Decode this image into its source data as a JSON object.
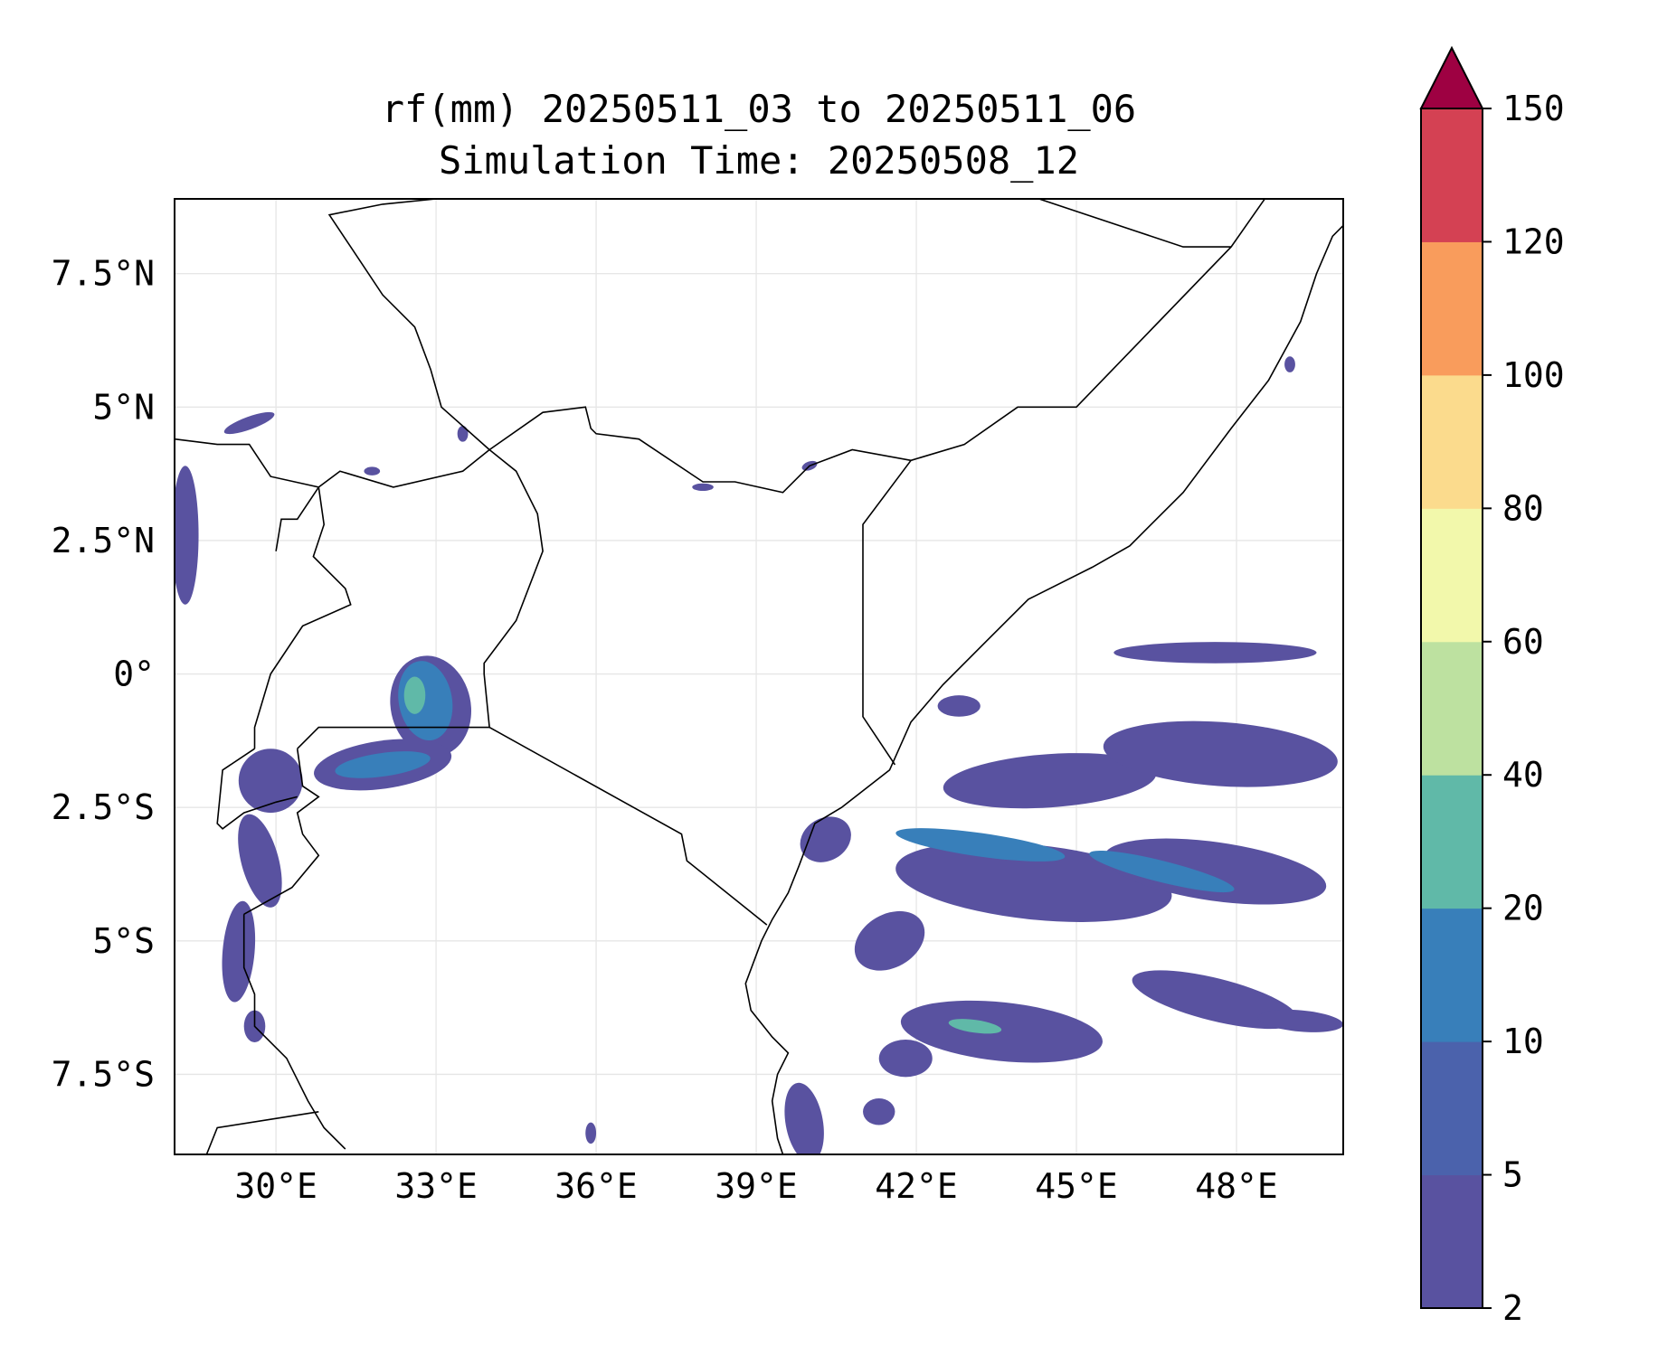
{
  "title": {
    "line1": "rf(mm) 20250511_03 to 20250511_06",
    "line2": "Simulation Time: 20250508_12"
  },
  "map": {
    "lon_range": [
      28.1,
      50.0
    ],
    "lat_range": [
      -9.0,
      8.9
    ],
    "x_ticks": [
      {
        "value": 30,
        "label": "30°E"
      },
      {
        "value": 33,
        "label": "33°E"
      },
      {
        "value": 36,
        "label": "36°E"
      },
      {
        "value": 39,
        "label": "39°E"
      },
      {
        "value": 42,
        "label": "42°E"
      },
      {
        "value": 45,
        "label": "45°E"
      },
      {
        "value": 48,
        "label": "48°E"
      }
    ],
    "y_ticks": [
      {
        "value": 7.5,
        "label": "7.5°N"
      },
      {
        "value": 5,
        "label": "5°N"
      },
      {
        "value": 2.5,
        "label": "2.5°N"
      },
      {
        "value": 0,
        "label": "0°"
      },
      {
        "value": -2.5,
        "label": "2.5°S"
      },
      {
        "value": -5,
        "label": "5°S"
      },
      {
        "value": -7.5,
        "label": "7.5°S"
      }
    ],
    "gridlines": true,
    "borders": [
      [
        [
          34.0,
          -1.0
        ],
        [
          37.6,
          -3.0
        ],
        [
          37.7,
          -3.5
        ],
        [
          39.2,
          -4.7
        ]
      ],
      [
        [
          34.0,
          -1.0
        ],
        [
          31.6,
          -1.0
        ],
        [
          30.8,
          -1.0
        ],
        [
          30.4,
          -1.4
        ]
      ],
      [
        [
          34.0,
          -1.0
        ],
        [
          33.9,
          0.0
        ],
        [
          33.9,
          0.2
        ],
        [
          34.5,
          1.0
        ],
        [
          35.0,
          2.3
        ],
        [
          34.9,
          3.0
        ],
        [
          34.5,
          3.8
        ],
        [
          34.0,
          4.2
        ]
      ],
      [
        [
          34.0,
          4.2
        ],
        [
          35.0,
          4.9
        ],
        [
          35.8,
          5.0
        ],
        [
          35.9,
          4.6
        ],
        [
          36.0,
          4.5
        ],
        [
          36.8,
          4.4
        ],
        [
          38.0,
          3.6
        ],
        [
          38.6,
          3.6
        ],
        [
          39.5,
          3.4
        ],
        [
          40.0,
          3.9
        ],
        [
          40.8,
          4.2
        ],
        [
          41.9,
          4.0
        ]
      ],
      [
        [
          41.9,
          4.0
        ],
        [
          41.0,
          2.8
        ],
        [
          41.0,
          -0.8
        ],
        [
          41.6,
          -1.7
        ]
      ],
      [
        [
          41.9,
          4.0
        ],
        [
          42.9,
          4.3
        ],
        [
          43.9,
          5.0
        ],
        [
          45.0,
          5.0
        ],
        [
          47.9,
          8.0
        ],
        [
          48.6,
          9.0
        ]
      ],
      [
        [
          47.9,
          8.0
        ],
        [
          47.0,
          8.0
        ],
        [
          44.0,
          9.0
        ]
      ],
      [
        [
          34.0,
          4.2
        ],
        [
          33.5,
          3.8
        ],
        [
          32.2,
          3.5
        ],
        [
          31.2,
          3.8
        ],
        [
          30.8,
          3.5
        ],
        [
          29.9,
          3.7
        ],
        [
          29.5,
          4.3
        ],
        [
          28.9,
          4.3
        ],
        [
          28.1,
          4.4
        ]
      ],
      [
        [
          30.8,
          3.5
        ],
        [
          30.9,
          2.8
        ],
        [
          30.7,
          2.2
        ],
        [
          31.3,
          1.6
        ],
        [
          31.4,
          1.3
        ],
        [
          30.5,
          0.9
        ],
        [
          29.9,
          0.0
        ],
        [
          29.6,
          -1.0
        ],
        [
          29.6,
          -1.4
        ]
      ],
      [
        [
          30.8,
          3.5
        ],
        [
          30.4,
          2.9
        ],
        [
          30.1,
          2.9
        ],
        [
          30.0,
          2.3
        ]
      ],
      [
        [
          34.0,
          4.2
        ],
        [
          33.1,
          5.0
        ],
        [
          32.9,
          5.7
        ],
        [
          32.6,
          6.5
        ],
        [
          32.0,
          7.1
        ],
        [
          31.4,
          8.0
        ],
        [
          31.0,
          8.6
        ],
        [
          32.0,
          8.8
        ],
        [
          33.0,
          8.9
        ]
      ],
      [
        [
          30.4,
          -1.4
        ],
        [
          30.5,
          -2.1
        ],
        [
          30.8,
          -2.3
        ],
        [
          30.4,
          -2.6
        ],
        [
          30.5,
          -3.0
        ],
        [
          30.8,
          -3.4
        ],
        [
          30.3,
          -4.0
        ],
        [
          29.4,
          -4.5
        ]
      ],
      [
        [
          29.6,
          -1.4
        ],
        [
          29.0,
          -1.8
        ],
        [
          28.9,
          -2.8
        ],
        [
          29.0,
          -2.9
        ],
        [
          29.4,
          -2.6
        ],
        [
          30.0,
          -2.4
        ],
        [
          30.4,
          -2.3
        ]
      ],
      [
        [
          29.4,
          -4.5
        ],
        [
          29.4,
          -5.5
        ],
        [
          29.6,
          -6.0
        ],
        [
          29.6,
          -6.6
        ],
        [
          30.2,
          -7.2
        ],
        [
          30.6,
          -8.0
        ],
        [
          30.9,
          -8.5
        ],
        [
          31.3,
          -8.9
        ]
      ],
      [
        [
          30.8,
          -8.2
        ],
        [
          28.9,
          -8.5
        ],
        [
          28.7,
          -9.0
        ]
      ]
    ],
    "coastline": [
      [
        39.5,
        -9.0
      ],
      [
        39.4,
        -8.7
      ],
      [
        39.3,
        -8.0
      ],
      [
        39.4,
        -7.5
      ],
      [
        39.6,
        -7.1
      ],
      [
        39.3,
        -6.8
      ],
      [
        38.9,
        -6.3
      ],
      [
        38.8,
        -5.8
      ],
      [
        39.1,
        -5.0
      ],
      [
        39.3,
        -4.6
      ],
      [
        39.6,
        -4.1
      ],
      [
        39.8,
        -3.6
      ],
      [
        40.1,
        -2.8
      ],
      [
        40.6,
        -2.5
      ],
      [
        41.5,
        -1.8
      ],
      [
        41.9,
        -0.9
      ],
      [
        42.5,
        -0.2
      ],
      [
        43.3,
        0.6
      ],
      [
        44.1,
        1.4
      ],
      [
        45.3,
        2.0
      ],
      [
        46.0,
        2.4
      ],
      [
        47.0,
        3.4
      ],
      [
        47.9,
        4.6
      ],
      [
        48.6,
        5.5
      ],
      [
        49.2,
        6.6
      ],
      [
        49.5,
        7.5
      ],
      [
        49.8,
        8.2
      ],
      [
        50.0,
        8.4
      ]
    ]
  },
  "colorbar": {
    "levels": [
      2,
      5,
      10,
      20,
      40,
      60,
      80,
      100,
      120,
      150
    ],
    "colors": [
      "#5952a0",
      "#4b62ac",
      "#387fba",
      "#60b9a8",
      "#bde1a0",
      "#f2f8ab",
      "#fbdb8d",
      "#f99c5c",
      "#d44153"
    ],
    "extend_color": "#9e0142",
    "extend": "max"
  },
  "rain_regions": [
    {
      "shape": "ellipse",
      "lon": 32.9,
      "lat": -0.6,
      "rlon": 0.75,
      "rlat": 0.95,
      "rot": -12,
      "level": 0
    },
    {
      "shape": "ellipse",
      "lon": 32.8,
      "lat": -0.5,
      "rlon": 0.5,
      "rlat": 0.75,
      "rot": -10,
      "level": 2
    },
    {
      "shape": "ellipse",
      "lon": 32.6,
      "lat": -0.4,
      "rlon": 0.2,
      "rlat": 0.35,
      "rot": 0,
      "level": 3
    },
    {
      "shape": "ellipse",
      "lon": 32.0,
      "lat": -1.7,
      "rlon": 1.3,
      "rlat": 0.45,
      "rot": -8,
      "level": 0
    },
    {
      "shape": "ellipse",
      "lon": 32.0,
      "lat": -1.7,
      "rlon": 0.9,
      "rlat": 0.22,
      "rot": -8,
      "level": 2
    },
    {
      "shape": "ellipse",
      "lon": 29.9,
      "lat": -2.0,
      "rlon": 0.6,
      "rlat": 0.6,
      "rot": 0,
      "level": 0
    },
    {
      "shape": "ellipse",
      "lon": 29.7,
      "lat": -3.5,
      "rlon": 0.35,
      "rlat": 0.9,
      "rot": -15,
      "level": 0
    },
    {
      "shape": "ellipse",
      "lon": 29.3,
      "lat": -5.2,
      "rlon": 0.3,
      "rlat": 0.95,
      "rot": 5,
      "level": 0
    },
    {
      "shape": "ellipse",
      "lon": 29.6,
      "lat": -6.6,
      "rlon": 0.2,
      "rlat": 0.3,
      "rot": 0,
      "level": 0
    },
    {
      "shape": "ellipse",
      "lon": 28.3,
      "lat": 2.6,
      "rlon": 0.25,
      "rlat": 1.3,
      "rot": 0,
      "level": 0
    },
    {
      "shape": "ellipse",
      "lon": 29.5,
      "lat": 4.7,
      "rlon": 0.5,
      "rlat": 0.12,
      "rot": -20,
      "level": 0
    },
    {
      "shape": "ellipse",
      "lon": 39.9,
      "lat": -8.4,
      "rlon": 0.35,
      "rlat": 0.75,
      "rot": -10,
      "level": 0
    },
    {
      "shape": "ellipse",
      "lon": 40.3,
      "lat": -3.1,
      "rlon": 0.5,
      "rlat": 0.4,
      "rot": -30,
      "level": 0
    },
    {
      "shape": "ellipse",
      "lon": 44.2,
      "lat": -3.9,
      "rlon": 2.6,
      "rlat": 0.7,
      "rot": 6,
      "level": 0
    },
    {
      "shape": "ellipse",
      "lon": 47.6,
      "lat": -3.7,
      "rlon": 2.1,
      "rlat": 0.55,
      "rot": 8,
      "level": 0
    },
    {
      "shape": "ellipse",
      "lon": 44.5,
      "lat": -2.0,
      "rlon": 2.0,
      "rlat": 0.5,
      "rot": -4,
      "level": 0
    },
    {
      "shape": "ellipse",
      "lon": 47.7,
      "lat": -1.5,
      "rlon": 2.2,
      "rlat": 0.6,
      "rot": 4,
      "level": 0
    },
    {
      "shape": "ellipse",
      "lon": 43.2,
      "lat": -3.2,
      "rlon": 1.6,
      "rlat": 0.22,
      "rot": 8,
      "level": 2
    },
    {
      "shape": "ellipse",
      "lon": 46.6,
      "lat": -3.7,
      "rlon": 1.4,
      "rlat": 0.2,
      "rot": 14,
      "level": 2
    },
    {
      "shape": "ellipse",
      "lon": 43.6,
      "lat": -6.7,
      "rlon": 1.9,
      "rlat": 0.55,
      "rot": 6,
      "level": 0
    },
    {
      "shape": "ellipse",
      "lon": 43.1,
      "lat": -6.6,
      "rlon": 0.5,
      "rlat": 0.12,
      "rot": 8,
      "level": 3
    },
    {
      "shape": "ellipse",
      "lon": 47.6,
      "lat": -6.1,
      "rlon": 1.6,
      "rlat": 0.4,
      "rot": 14,
      "level": 0
    },
    {
      "shape": "ellipse",
      "lon": 49.2,
      "lat": -6.5,
      "rlon": 0.8,
      "rlat": 0.2,
      "rot": 5,
      "level": 0
    },
    {
      "shape": "ellipse",
      "lon": 41.5,
      "lat": -5.0,
      "rlon": 0.7,
      "rlat": 0.5,
      "rot": -30,
      "level": 0
    },
    {
      "shape": "ellipse",
      "lon": 41.8,
      "lat": -7.2,
      "rlon": 0.5,
      "rlat": 0.35,
      "rot": 0,
      "level": 0
    },
    {
      "shape": "ellipse",
      "lon": 41.3,
      "lat": -8.2,
      "rlon": 0.3,
      "rlat": 0.25,
      "rot": 0,
      "level": 0
    },
    {
      "shape": "ellipse",
      "lon": 35.9,
      "lat": -8.6,
      "rlon": 0.1,
      "rlat": 0.2,
      "rot": 0,
      "level": 0
    },
    {
      "shape": "ellipse",
      "lon": 47.6,
      "lat": 0.4,
      "rlon": 1.9,
      "rlat": 0.2,
      "rot": 0,
      "level": 0
    },
    {
      "shape": "ellipse",
      "lon": 42.8,
      "lat": -0.6,
      "rlon": 0.4,
      "rlat": 0.2,
      "rot": 0,
      "level": 0
    },
    {
      "shape": "ellipse",
      "lon": 38.0,
      "lat": 3.5,
      "rlon": 0.2,
      "rlat": 0.07,
      "rot": 0,
      "level": 0
    },
    {
      "shape": "ellipse",
      "lon": 40.0,
      "lat": 3.9,
      "rlon": 0.15,
      "rlat": 0.08,
      "rot": -20,
      "level": 0
    },
    {
      "shape": "ellipse",
      "lon": 33.5,
      "lat": 4.5,
      "rlon": 0.1,
      "rlat": 0.15,
      "rot": 0,
      "level": 0
    },
    {
      "shape": "ellipse",
      "lon": 49.0,
      "lat": 5.8,
      "rlon": 0.1,
      "rlat": 0.15,
      "rot": 0,
      "level": 0
    },
    {
      "shape": "ellipse",
      "lon": 31.8,
      "lat": 3.8,
      "rlon": 0.15,
      "rlat": 0.08,
      "rot": 0,
      "level": 0
    }
  ]
}
